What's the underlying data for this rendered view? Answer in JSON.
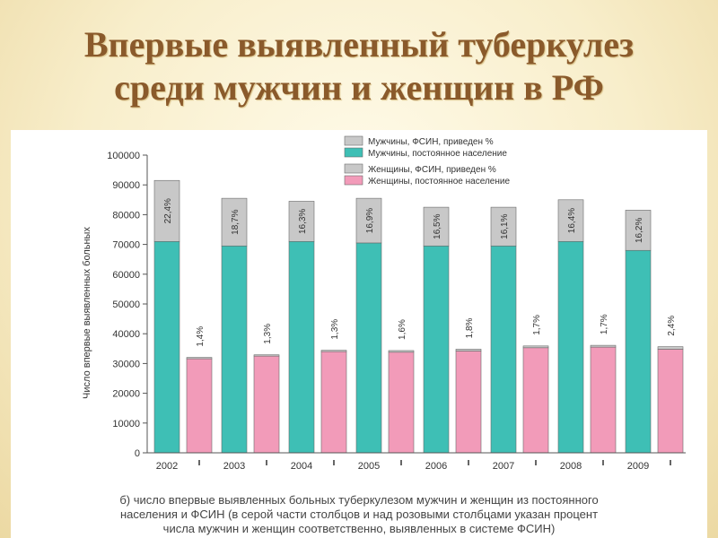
{
  "slide": {
    "title_line1": "Впервые выявленный туберкулез",
    "title_line2": "среди мужчин и женщин в РФ"
  },
  "caption": {
    "line1": "б) число впервые выявленных больных туберкулезом мужчин и женщин из постоянного",
    "line2": "населения и ФСИН (в серой части столбцов и над розовыми столбцами указан процент",
    "line3": "числа мужчин и женщин соответственно, выявленных в системе ФСИН)"
  },
  "colors": {
    "men_population": "#3ebfb5",
    "fsin": "#c8c8c8",
    "women_population": "#f29bb9",
    "axis": "#555555"
  },
  "chart_data": {
    "type": "bar",
    "categories": [
      "2002",
      "2003",
      "2004",
      "2005",
      "2006",
      "2007",
      "2008",
      "2009"
    ],
    "ylabel": "Число впервые выявленных больных",
    "ylim": [
      0,
      100000
    ],
    "yticks": [
      0,
      10000,
      20000,
      30000,
      40000,
      50000,
      60000,
      70000,
      80000,
      90000,
      100000
    ],
    "legend_position": "top-right",
    "legend": [
      {
        "label": "Мужчины, ФСИН, приведен %",
        "color": "#c8c8c8"
      },
      {
        "label": "Мужчины, постоянное население",
        "color": "#3ebfb5"
      },
      {
        "label": "Женщины, ФСИН, приведен %",
        "color": "#c8c8c8"
      },
      {
        "label": "Женщины, постоянное население",
        "color": "#f29bb9"
      }
    ],
    "series": [
      {
        "name": "Мужчины, постоянное население",
        "values": [
          71000,
          69500,
          71000,
          70500,
          69500,
          69500,
          71000,
          68000
        ]
      },
      {
        "name": "Мужчины, ФСИН, приведен %",
        "values": [
          20500,
          16000,
          13500,
          15000,
          13000,
          13000,
          14000,
          13500
        ],
        "labels": [
          "22,4%",
          "18,7%",
          "16,3%",
          "16,9%",
          "16,5%",
          "16,1%",
          "16,4%",
          "16,2%"
        ]
      },
      {
        "name": "Женщины, постоянное население",
        "values": [
          31600,
          32500,
          34000,
          33800,
          34200,
          35300,
          35500,
          34800
        ]
      },
      {
        "name": "Женщины, ФСИН, приведен %",
        "values": [
          450,
          420,
          450,
          550,
          620,
          600,
          610,
          850
        ],
        "labels": [
          "1,4%",
          "1,3%",
          "1,3%",
          "1,6%",
          "1,8%",
          "1,7%",
          "1,7%",
          "2,4%"
        ]
      }
    ]
  }
}
